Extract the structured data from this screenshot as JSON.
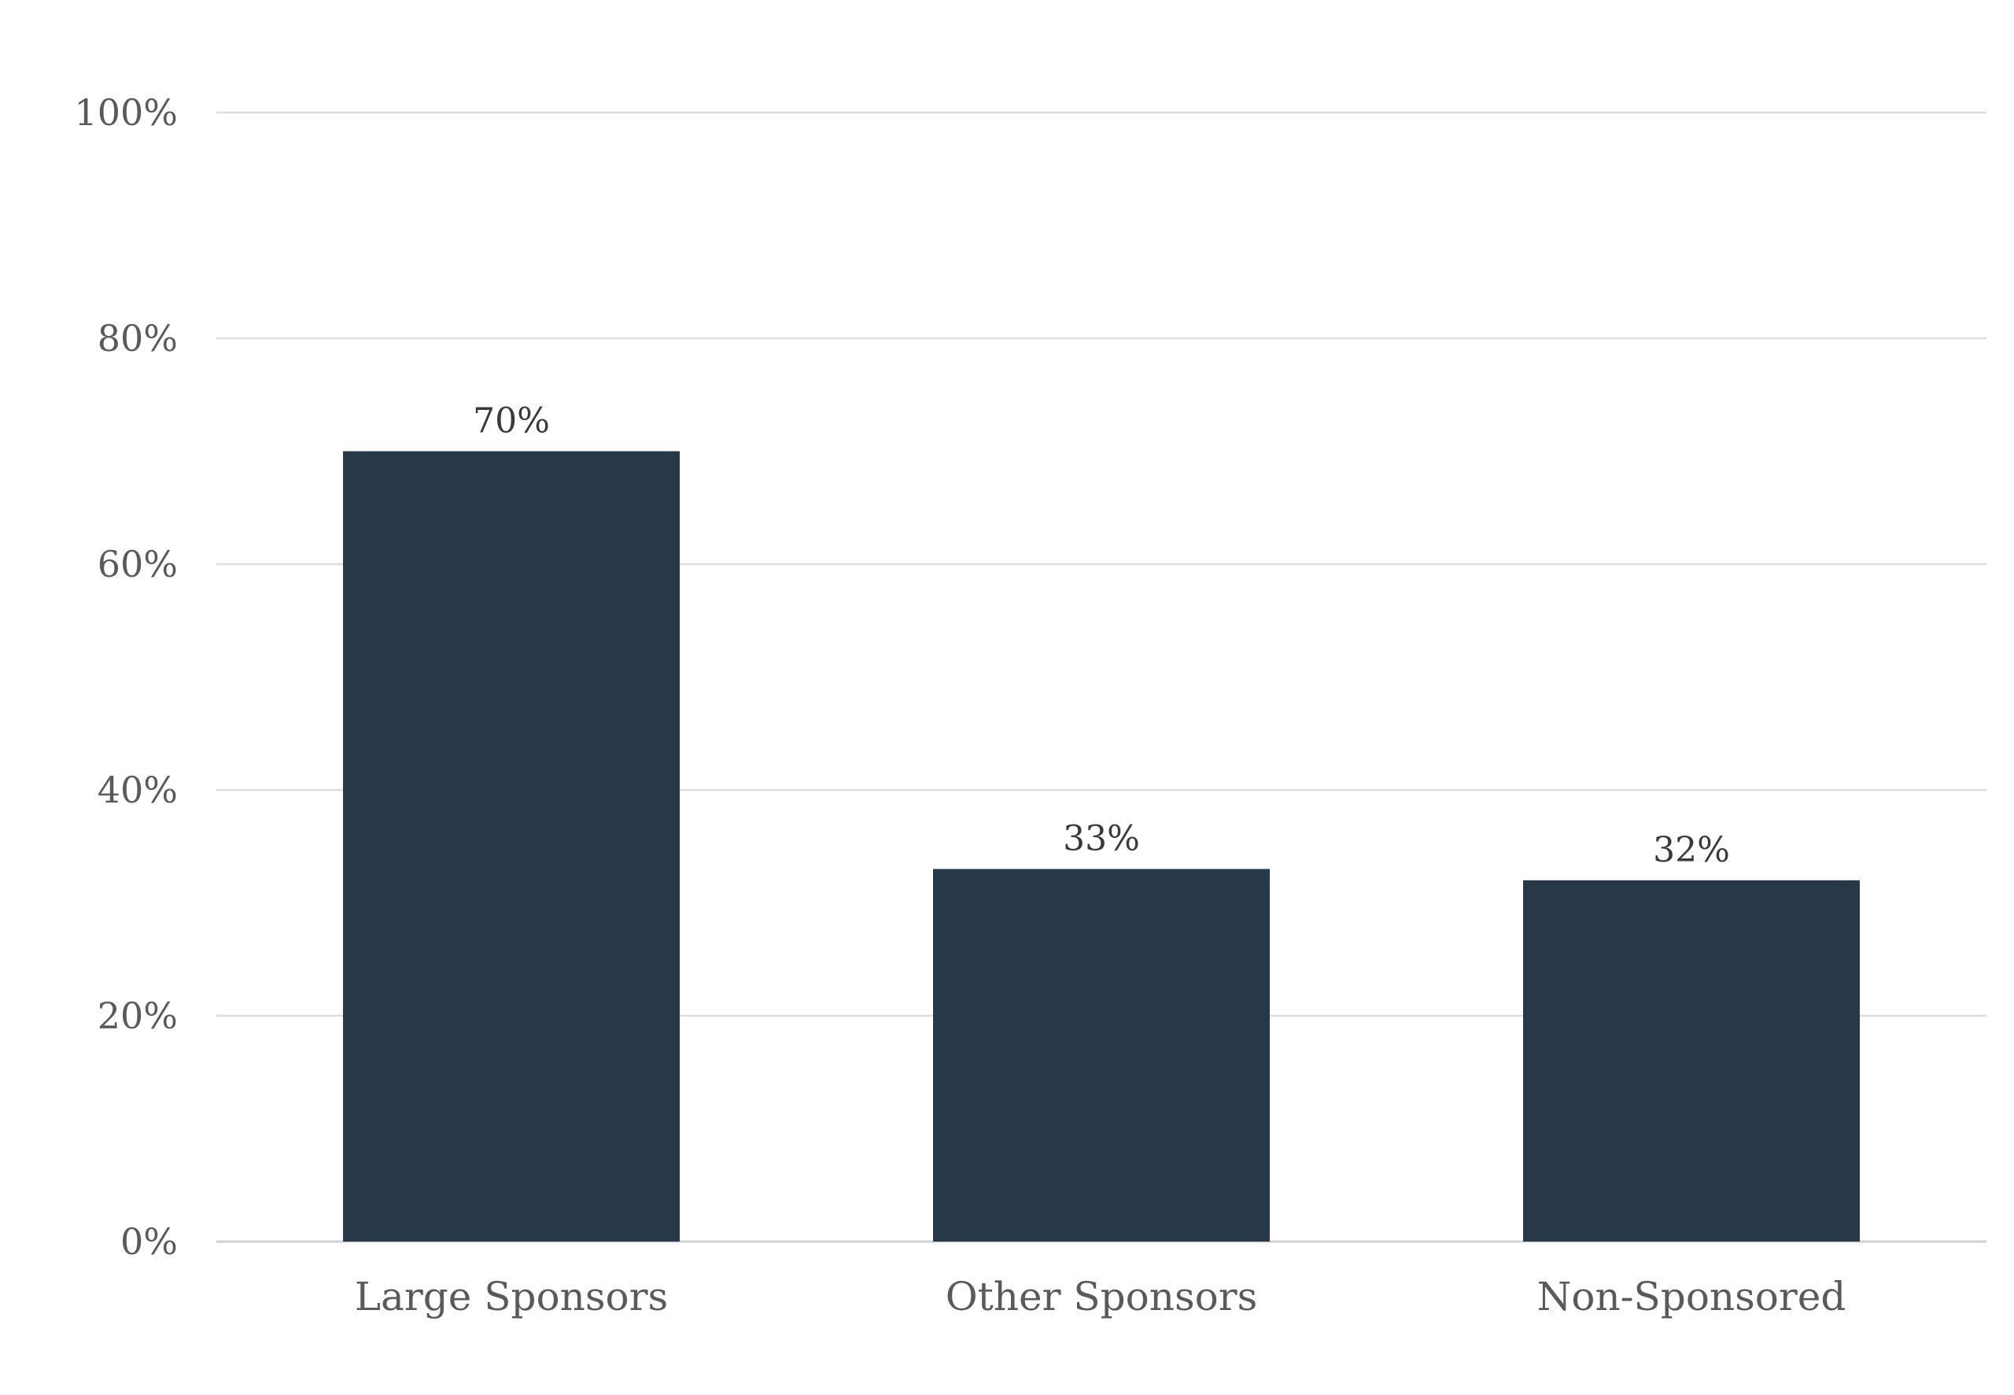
{
  "chart_data": {
    "type": "bar",
    "title": "",
    "xlabel": "",
    "ylabel": "",
    "categories": [
      "Large Sponsors",
      "Other Sponsors",
      "Non-Sponsored"
    ],
    "values": [
      70,
      33,
      32
    ],
    "data_labels": [
      "70%",
      "33%",
      "32%"
    ],
    "ylim": [
      0,
      100
    ],
    "yticks": [
      0,
      20,
      40,
      60,
      80,
      100
    ],
    "ytick_labels": [
      "0%",
      "20%",
      "40%",
      "60%",
      "80%",
      "100%"
    ],
    "grid": true,
    "legend": "none",
    "bar_color": "#273848"
  }
}
